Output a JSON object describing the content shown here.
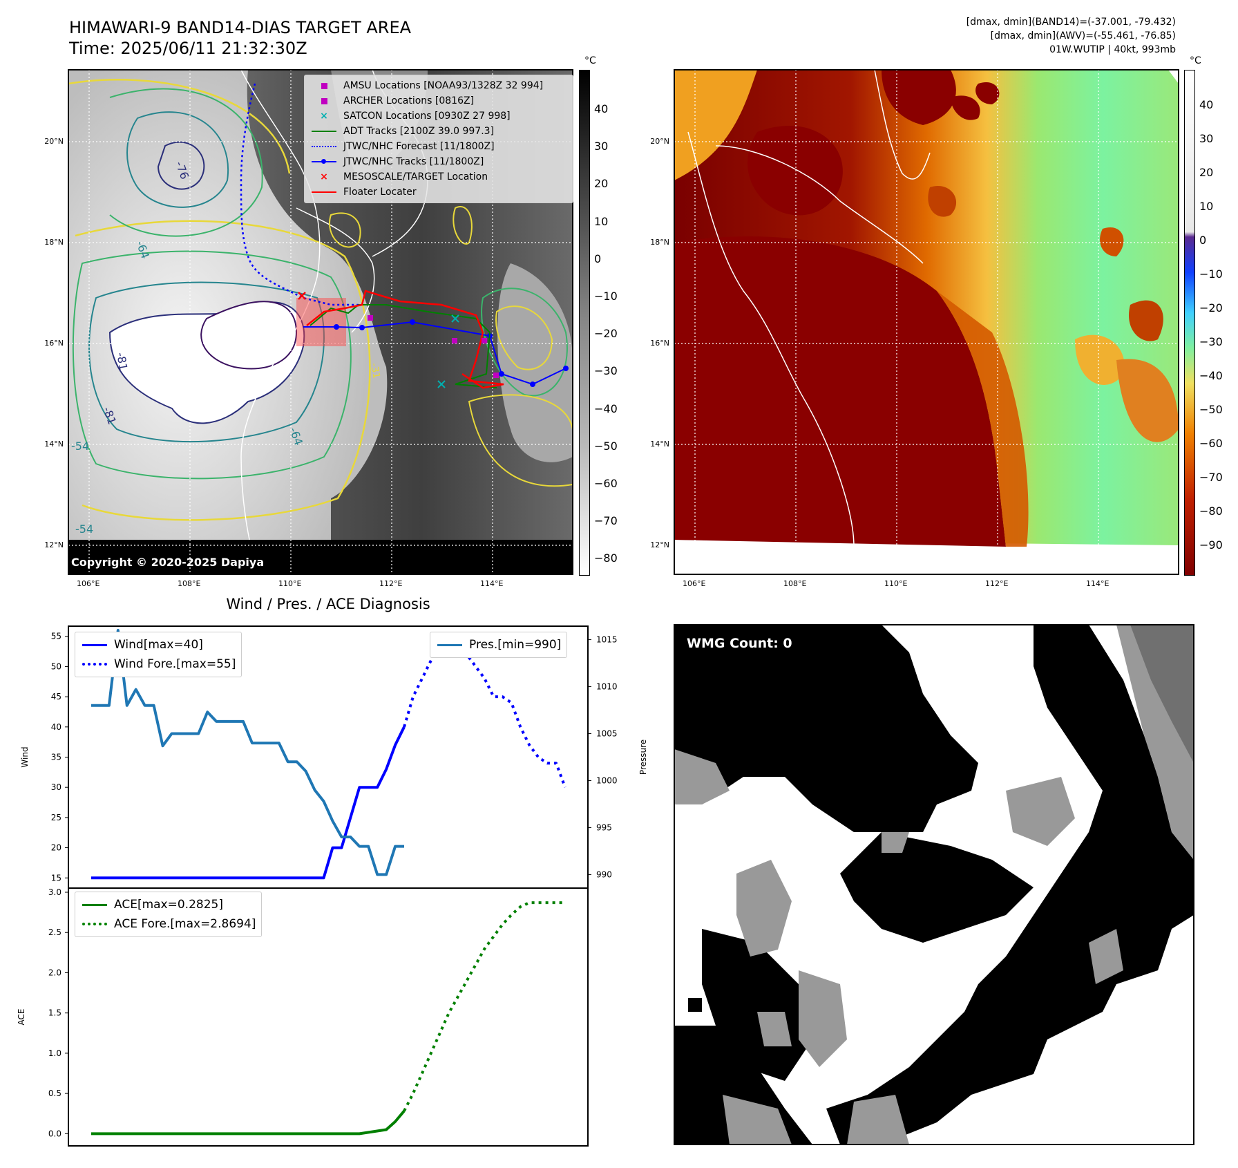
{
  "header": {
    "title_line1": "HIMAWARI-9 BAND14-DIAS TARGET AREA",
    "title_line2": "Time: 2025/06/11 21:32:30Z",
    "info_line1": "[dmax, dmin](BAND14)=(-37.001, -79.432)",
    "info_line2": "[dmax, dmin](AWV)=(-55.461, -76.85)",
    "info_line3": "01W.WUTIP | 40kt, 993mb"
  },
  "maps": {
    "lat_labels": [
      "20°N",
      "18°N",
      "16°N",
      "14°N",
      "12°N"
    ],
    "lon_labels": [
      "106°E",
      "108°E",
      "110°E",
      "112°E",
      "114°E"
    ],
    "copyright": "Copyright © 2020-2025 Dapiya",
    "left_colorbar": {
      "unit": "°C",
      "ticks": [
        "40",
        "30",
        "20",
        "10",
        "0",
        "−10",
        "−20",
        "−30",
        "−40",
        "−50",
        "−60",
        "−70",
        "−80"
      ]
    },
    "right_colorbar": {
      "unit": "°C",
      "ticks": [
        "40",
        "30",
        "20",
        "10",
        "0",
        "−10",
        "−20",
        "−30",
        "−40",
        "−50",
        "−60",
        "−70",
        "−80",
        "−90"
      ]
    },
    "contour_labels": [
      "-76",
      "-64",
      "-81",
      "-54",
      "-64",
      "-54",
      "-81",
      "-31"
    ],
    "legend": [
      {
        "label": "AMSU Locations [NOAA93/1328Z 32 994]",
        "color": "#c000c0",
        "marker": "square"
      },
      {
        "label": "ARCHER Locations [0816Z]",
        "color": "#c000c0",
        "marker": "square"
      },
      {
        "label": "SATCON Locations [0930Z 27 998]",
        "color": "#00b0b0",
        "marker": "x"
      },
      {
        "label": "ADT Tracks [2100Z 39.0 997.3]",
        "color": "#008000",
        "marker": "line"
      },
      {
        "label": "JTWC/NHC Forecast [11/1800Z]",
        "color": "#0000ff",
        "marker": "dotted"
      },
      {
        "label": "JTWC/NHC Tracks [11/1800Z]",
        "color": "#0000ff",
        "marker": "line-dot"
      },
      {
        "label": "MESOSCALE/TARGET Location",
        "color": "#ff0000",
        "marker": "x"
      },
      {
        "label": "Floater Locater",
        "color": "#ff0000",
        "marker": "line"
      }
    ]
  },
  "diag": {
    "title": "Wind / Pres. / ACE Diagnosis",
    "wind_ylabel": "Wind",
    "pres_ylabel": "Pressure",
    "ace_ylabel": "ACE",
    "legend_wind": "Wind[max=40]",
    "legend_wind_fore": "Wind Fore.[max=55]",
    "legend_pres": "Pres.[min=990]",
    "legend_ace": "ACE[max=0.2825]",
    "legend_ace_fore": "ACE Fore.[max=2.8694]",
    "wmg_count": "WMG Count: 0"
  },
  "colors": {
    "wind": "#0000ff",
    "pressure": "#1f77b4",
    "ace": "#008000"
  },
  "chart_data": [
    {
      "type": "line",
      "name": "wind-pressure",
      "wind_ylim": [
        14,
        56
      ],
      "wind_ticks": [
        15,
        20,
        25,
        30,
        35,
        40,
        45,
        50,
        55
      ],
      "pres_ylim": [
        989,
        1016
      ],
      "pres_ticks": [
        990,
        995,
        1000,
        1005,
        1010,
        1015
      ],
      "x_count": 54,
      "series": [
        {
          "name": "Wind[max=40]",
          "axis": "left",
          "style": "solid",
          "color": "#0000ff",
          "x": [
            0,
            1,
            2,
            3,
            4,
            5,
            6,
            7,
            8,
            9,
            10,
            11,
            12,
            13,
            14,
            15,
            16,
            17,
            18,
            19,
            20,
            21,
            22,
            23,
            24,
            25,
            26,
            27,
            28,
            29,
            30,
            31,
            32,
            33,
            34,
            35
          ],
          "values": [
            15,
            15,
            15,
            15,
            15,
            15,
            15,
            15,
            15,
            15,
            15,
            15,
            15,
            15,
            15,
            15,
            15,
            15,
            15,
            15,
            15,
            15,
            15,
            15,
            15,
            15,
            15,
            20,
            20,
            25,
            30,
            30,
            30,
            33,
            37,
            40
          ]
        },
        {
          "name": "Wind Fore.[max=55]",
          "axis": "left",
          "style": "dotted",
          "color": "#0000ff",
          "x": [
            35,
            36,
            37,
            38,
            39,
            40,
            41,
            42,
            43,
            44,
            45,
            46,
            47,
            48,
            49,
            50,
            51,
            52,
            53
          ],
          "values": [
            40,
            45,
            48,
            51,
            53,
            55,
            54,
            52,
            50,
            48,
            45,
            45,
            44,
            40,
            37,
            35,
            34,
            34,
            30
          ]
        },
        {
          "name": "Pres.[min=990]",
          "axis": "right",
          "style": "solid",
          "color": "#1f77b4",
          "x": [
            0,
            1,
            2,
            3,
            4,
            5,
            6,
            7,
            8,
            9,
            10,
            11,
            12,
            13,
            14,
            15,
            16,
            17,
            18,
            19,
            20,
            21,
            22,
            23,
            24,
            25,
            26,
            27,
            28,
            29,
            30,
            31,
            32,
            33,
            34,
            35
          ],
          "values": [
            1008,
            1008,
            1008,
            1016,
            1008,
            1009.7,
            1008,
            1008,
            1003.7,
            1005,
            1005,
            1005,
            1005,
            1007.3,
            1006.3,
            1006.3,
            1006.3,
            1006.3,
            1004,
            1004,
            1004,
            1004,
            1002,
            1002,
            1001,
            999,
            997.8,
            995.7,
            994,
            994,
            993,
            993,
            990,
            990,
            993,
            993
          ]
        }
      ]
    },
    {
      "type": "line",
      "name": "ace",
      "ylim": [
        -0.1,
        3.0
      ],
      "ticks": [
        0.0,
        0.5,
        1.0,
        1.5,
        2.0,
        2.5,
        3.0
      ],
      "x_count": 54,
      "series": [
        {
          "name": "ACE[max=0.2825]",
          "style": "solid",
          "color": "#008000",
          "x": [
            0,
            5,
            10,
            15,
            20,
            25,
            30,
            33,
            34,
            35
          ],
          "values": [
            0,
            0,
            0,
            0,
            0,
            0,
            0,
            0.05,
            0.15,
            0.2825
          ]
        },
        {
          "name": "ACE Fore.[max=2.8694]",
          "style": "dotted",
          "color": "#008000",
          "x": [
            35,
            36,
            37,
            38,
            39,
            40,
            41,
            42,
            43,
            44,
            45,
            46,
            47,
            48,
            49,
            50,
            51,
            52,
            53
          ],
          "values": [
            0.2825,
            0.5,
            0.75,
            1.0,
            1.25,
            1.5,
            1.7,
            1.9,
            2.1,
            2.3,
            2.45,
            2.6,
            2.72,
            2.82,
            2.87,
            2.87,
            2.87,
            2.87,
            2.87
          ]
        }
      ]
    }
  ]
}
